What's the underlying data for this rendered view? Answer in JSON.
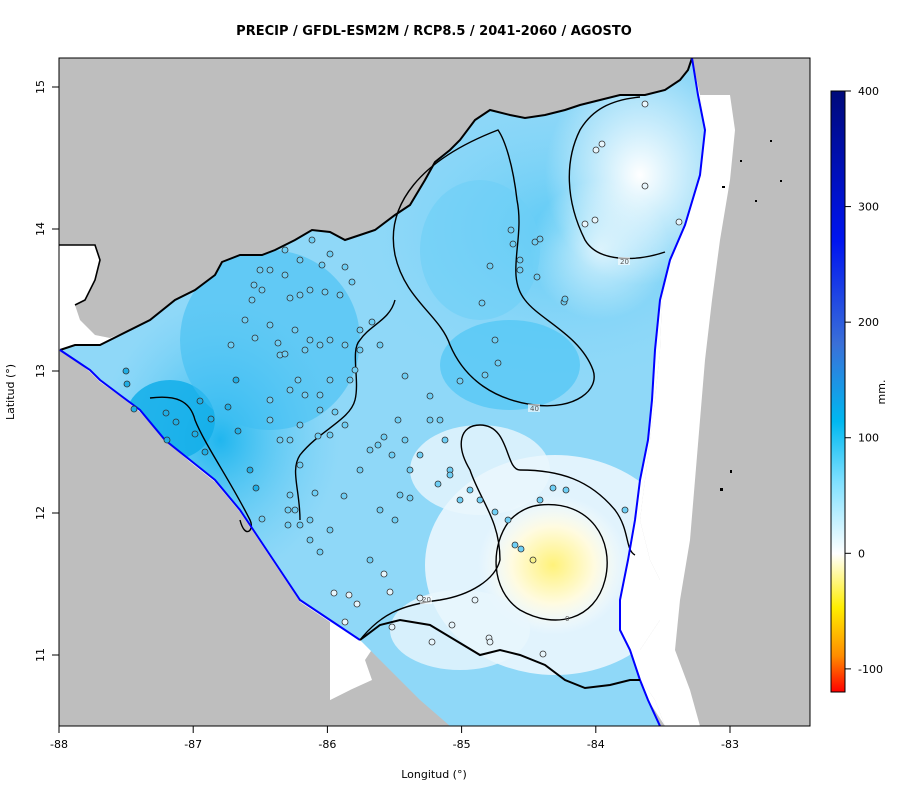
{
  "title": "PRECIP / GFDL-ESM2M / RCP8.5 / 2041-2060 / AGOSTO",
  "xlabel": "Longitud (°)",
  "ylabel": "Latitud (°)",
  "x_ticks": [
    "-88",
    "-87",
    "-86",
    "-85",
    "-84",
    "-83"
  ],
  "y_ticks": [
    "15",
    "14",
    "13",
    "12",
    "11"
  ],
  "colorbar": {
    "unit": "mm.",
    "ticks": [
      "400",
      "300",
      "200",
      "100",
      "0",
      "-100"
    ],
    "range": [
      -120,
      400
    ]
  },
  "contour_labels": [
    "20",
    "40",
    "20",
    "0"
  ],
  "colors": {
    "land_outside": "#bebebe",
    "sea": "#ffffff",
    "border": "#000000",
    "coast": "#0000ff",
    "contour": "#000000"
  }
}
